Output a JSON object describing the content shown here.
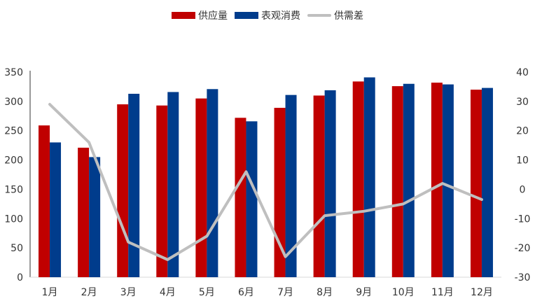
{
  "chart_data": {
    "type": "bar",
    "categories": [
      "1月",
      "2月",
      "3月",
      "4月",
      "5月",
      "6月",
      "7月",
      "8月",
      "9月",
      "10月",
      "11月",
      "12月"
    ],
    "series": [
      {
        "name": "供应量",
        "type": "bar",
        "axis": "left",
        "color": "#c00000",
        "values": [
          259,
          221,
          295,
          293,
          305,
          272,
          289,
          310,
          334,
          326,
          332,
          320
        ]
      },
      {
        "name": "表观消费",
        "type": "bar",
        "axis": "left",
        "color": "#003c8c",
        "values": [
          230,
          205,
          313,
          316,
          321,
          266,
          311,
          319,
          341,
          330,
          329,
          323
        ]
      },
      {
        "name": "供需差",
        "type": "line",
        "axis": "right",
        "color": "#bfbfbf",
        "values": [
          29,
          16,
          -18,
          -24,
          -16,
          6,
          -23,
          -9,
          -7.5,
          -5,
          2,
          -3.5
        ]
      }
    ],
    "y_left": {
      "min": 0,
      "max": 350,
      "ticks": [
        0,
        50,
        100,
        150,
        200,
        250,
        300,
        350
      ]
    },
    "y_right": {
      "min": -30,
      "max": 40,
      "ticks": [
        -30,
        -20,
        -10,
        0,
        10,
        20,
        30,
        40
      ]
    },
    "legend_position": "top-center",
    "grid": false
  }
}
